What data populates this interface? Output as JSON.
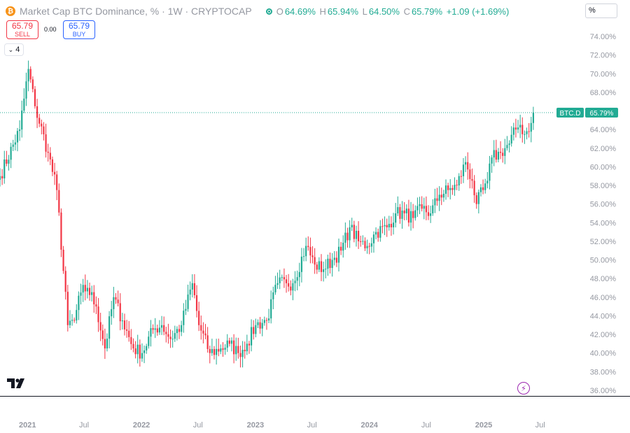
{
  "header": {
    "coin_glyph": "₿",
    "title": "Market Cap BTC Dominance, % · 1W · CRYPTOCAP",
    "ohlc": [
      {
        "key": "O",
        "value": "64.69%"
      },
      {
        "key": "H",
        "value": "65.94%"
      },
      {
        "key": "L",
        "value": "64.50%"
      },
      {
        "key": "C",
        "value": "65.79%"
      }
    ],
    "change": "+1.09 (+1.69%)",
    "unit_button": "%"
  },
  "trade": {
    "sell_price": "65.79",
    "sell_label": "SELL",
    "spread": "0.00",
    "buy_price": "65.79",
    "buy_label": "BUY"
  },
  "indicators_toggle": {
    "icon": "chevron-down-icon",
    "count": "4"
  },
  "last_price": {
    "symbol": "BTC.D",
    "value": "65.79%",
    "numeric": 65.79
  },
  "colors": {
    "up": "#22ab94",
    "down": "#f23645",
    "axis_text": "#9598a1"
  },
  "chart_data": {
    "type": "candlestick",
    "y_scale": "percent",
    "ylim": [
      36,
      75
    ],
    "y_ticks": [
      "74.00%",
      "72.00%",
      "70.00%",
      "68.00%",
      "66.00%",
      "64.00%",
      "62.00%",
      "60.00%",
      "58.00%",
      "56.00%",
      "54.00%",
      "52.00%",
      "50.00%",
      "48.00%",
      "46.00%",
      "44.00%",
      "42.00%",
      "40.00%",
      "38.00%",
      "36.00%"
    ],
    "x_ticks": [
      "2021",
      "Jul",
      "2022",
      "Jul",
      "2023",
      "Jul",
      "2024",
      "Jul",
      "2025",
      "Jul"
    ],
    "x_range": [
      "2020-10-05",
      "2025-08-11"
    ],
    "series": [
      {
        "interval": "1W",
        "anchors": [
          {
            "date": "2020-10-05",
            "close": 59.0
          },
          {
            "date": "2020-12-07",
            "close": 64.0
          },
          {
            "date": "2021-01-04",
            "close": 70.5
          },
          {
            "date": "2021-01-25",
            "close": 66.5
          },
          {
            "date": "2021-03-08",
            "close": 61.5
          },
          {
            "date": "2021-04-05",
            "close": 57.5
          },
          {
            "date": "2021-05-10",
            "close": 43.0
          },
          {
            "date": "2021-05-31",
            "close": 43.5
          },
          {
            "date": "2021-06-21",
            "close": 46.5
          },
          {
            "date": "2021-07-12",
            "close": 47.0
          },
          {
            "date": "2021-08-09",
            "close": 45.0
          },
          {
            "date": "2021-09-06",
            "close": 40.5
          },
          {
            "date": "2021-10-04",
            "close": 46.0
          },
          {
            "date": "2021-11-01",
            "close": 43.5
          },
          {
            "date": "2021-12-06",
            "close": 40.5
          },
          {
            "date": "2022-01-03",
            "close": 40.0
          },
          {
            "date": "2022-02-07",
            "close": 42.5
          },
          {
            "date": "2022-03-07",
            "close": 43.0
          },
          {
            "date": "2022-04-04",
            "close": 41.5
          },
          {
            "date": "2022-05-09",
            "close": 43.0
          },
          {
            "date": "2022-06-13",
            "close": 47.5
          },
          {
            "date": "2022-07-04",
            "close": 43.0
          },
          {
            "date": "2022-08-08",
            "close": 40.0
          },
          {
            "date": "2022-09-12",
            "close": 40.5
          },
          {
            "date": "2022-10-10",
            "close": 41.0
          },
          {
            "date": "2022-11-07",
            "close": 40.0
          },
          {
            "date": "2022-12-05",
            "close": 41.0
          },
          {
            "date": "2023-01-02",
            "close": 43.0
          },
          {
            "date": "2023-02-06",
            "close": 43.5
          },
          {
            "date": "2023-03-13",
            "close": 47.5
          },
          {
            "date": "2023-04-10",
            "close": 47.5
          },
          {
            "date": "2023-05-01",
            "close": 47.5
          },
          {
            "date": "2023-06-12",
            "close": 51.5
          },
          {
            "date": "2023-07-10",
            "close": 49.5
          },
          {
            "date": "2023-08-07",
            "close": 49.0
          },
          {
            "date": "2023-09-04",
            "close": 50.0
          },
          {
            "date": "2023-10-02",
            "close": 51.0
          },
          {
            "date": "2023-10-30",
            "close": 53.5
          },
          {
            "date": "2023-11-27",
            "close": 52.0
          },
          {
            "date": "2023-12-25",
            "close": 51.5
          },
          {
            "date": "2024-01-22",
            "close": 53.0
          },
          {
            "date": "2024-02-26",
            "close": 53.5
          },
          {
            "date": "2024-03-25",
            "close": 55.0
          },
          {
            "date": "2024-04-22",
            "close": 55.0
          },
          {
            "date": "2024-05-20",
            "close": 54.5
          },
          {
            "date": "2024-06-17",
            "close": 55.5
          },
          {
            "date": "2024-07-15",
            "close": 55.0
          },
          {
            "date": "2024-08-12",
            "close": 57.0
          },
          {
            "date": "2024-09-09",
            "close": 57.5
          },
          {
            "date": "2024-10-07",
            "close": 58.0
          },
          {
            "date": "2024-11-04",
            "close": 60.5
          },
          {
            "date": "2024-11-25",
            "close": 58.5
          },
          {
            "date": "2024-12-09",
            "close": 56.0
          },
          {
            "date": "2024-12-30",
            "close": 57.5
          },
          {
            "date": "2025-01-13",
            "close": 58.5
          },
          {
            "date": "2025-01-27",
            "close": 61.0
          },
          {
            "date": "2025-02-24",
            "close": 61.5
          },
          {
            "date": "2025-03-24",
            "close": 62.5
          },
          {
            "date": "2025-04-14",
            "close": 64.0
          },
          {
            "date": "2025-04-28",
            "close": 64.5
          },
          {
            "date": "2025-05-12",
            "close": 63.5
          },
          {
            "date": "2025-06-02",
            "close": 64.7
          },
          {
            "date": "2025-06-09",
            "close": 65.79
          }
        ]
      }
    ],
    "grid": false,
    "legend": "none"
  }
}
